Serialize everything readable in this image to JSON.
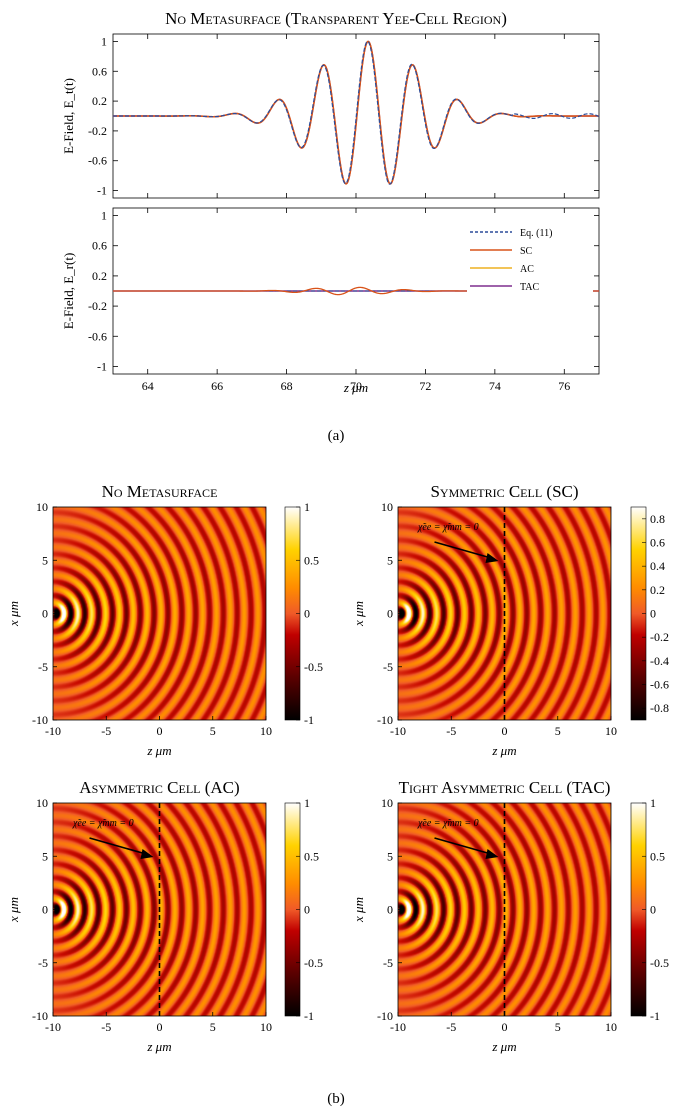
{
  "chart_data": [
    {
      "type": "line",
      "title": "No Metasurface (Transparent Yee-Cell Region)",
      "xlabel": "",
      "ylabel": "E-Field, E_t(t)",
      "xlim": [
        63,
        77
      ],
      "ylim": [
        -1.1,
        1.1
      ],
      "yticks": [
        "1",
        "0.6",
        "0.2",
        "-0.2",
        "-0.6",
        "-1"
      ],
      "xticks": [],
      "pulse": {
        "center": 70.35,
        "period": 1.3,
        "sigma": 2.1,
        "phase": -0.35
      },
      "series": [
        {
          "name": "Eq. (11)",
          "style": "dashed",
          "color": "#2b4c9a"
        },
        {
          "name": "SC",
          "color": "#d95319"
        },
        {
          "name": "AC",
          "color": "#edb120"
        },
        {
          "name": "TAC",
          "color": "#7e2f8e"
        }
      ]
    },
    {
      "type": "line",
      "title": "",
      "xlabel": "z μm",
      "ylabel": "E-Field, E_r(t)",
      "xlim": [
        63,
        77
      ],
      "ylim": [
        -1.1,
        1.1
      ],
      "yticks": [
        "1",
        "0.6",
        "0.2",
        "-0.2",
        "-0.6",
        "-1"
      ],
      "xticks": [
        "64",
        "66",
        "68",
        "70",
        "72",
        "74",
        "76"
      ],
      "sc_reflection": {
        "center": 69.8,
        "period": 1.3,
        "sigma": 1.6,
        "amplitude": 0.05
      },
      "legend": {
        "placement": "top-right",
        "entries": [
          "Eq. (11)",
          "SC",
          "AC",
          "TAC"
        ]
      }
    },
    {
      "type": "heatmap",
      "title": "No Metasurface",
      "xlabel": "z μm",
      "ylabel": "x μm",
      "xlim": [
        -10,
        10
      ],
      "ylim": [
        -10,
        10
      ],
      "xticks": [
        "-10",
        "-5",
        "0",
        "5",
        "10"
      ],
      "yticks": [
        "10",
        "5",
        "0",
        "-5",
        "-10"
      ],
      "colorbar": [
        "1",
        "0.5",
        "0",
        "-0.5",
        "-1"
      ],
      "annotation": "",
      "boundary_line": false
    },
    {
      "type": "heatmap",
      "title": "Symmetric Cell (SC)",
      "xlabel": "z μm",
      "ylabel": "x μm",
      "xlim": [
        -10,
        10
      ],
      "ylim": [
        -10,
        10
      ],
      "xticks": [
        "-10",
        "-5",
        "0",
        "5",
        "10"
      ],
      "yticks": [
        "10",
        "5",
        "0",
        "-5",
        "-10"
      ],
      "colorbar": [
        "0.8",
        "0.6",
        "0.4",
        "0.2",
        "0",
        "-0.2",
        "-0.4",
        "-0.6",
        "-0.8"
      ],
      "annotation": "χ̃ee = χ̃mm = 0",
      "boundary_line": true
    },
    {
      "type": "heatmap",
      "title": "Asymmetric Cell (AC)",
      "xlabel": "z μm",
      "ylabel": "x μm",
      "xlim": [
        -10,
        10
      ],
      "ylim": [
        -10,
        10
      ],
      "xticks": [
        "-10",
        "-5",
        "0",
        "5",
        "10"
      ],
      "yticks": [
        "10",
        "5",
        "0",
        "-5",
        "-10"
      ],
      "colorbar": [
        "1",
        "0.5",
        "0",
        "-0.5",
        "-1"
      ],
      "annotation": "χ̃ee = χ̃mm = 0",
      "boundary_line": true
    },
    {
      "type": "heatmap",
      "title": "Tight Asymmetric Cell (TAC)",
      "xlabel": "z μm",
      "ylabel": "x μm",
      "xlim": [
        -10,
        10
      ],
      "ylim": [
        -10,
        10
      ],
      "xticks": [
        "-10",
        "-5",
        "0",
        "5",
        "10"
      ],
      "yticks": [
        "10",
        "5",
        "0",
        "-5",
        "-10"
      ],
      "colorbar": [
        "1",
        "0.5",
        "0",
        "-0.5",
        "-1"
      ],
      "annotation": "χ̃ee = χ̃mm = 0",
      "boundary_line": true
    }
  ],
  "captions": {
    "a": "(a)",
    "b": "(b)"
  }
}
